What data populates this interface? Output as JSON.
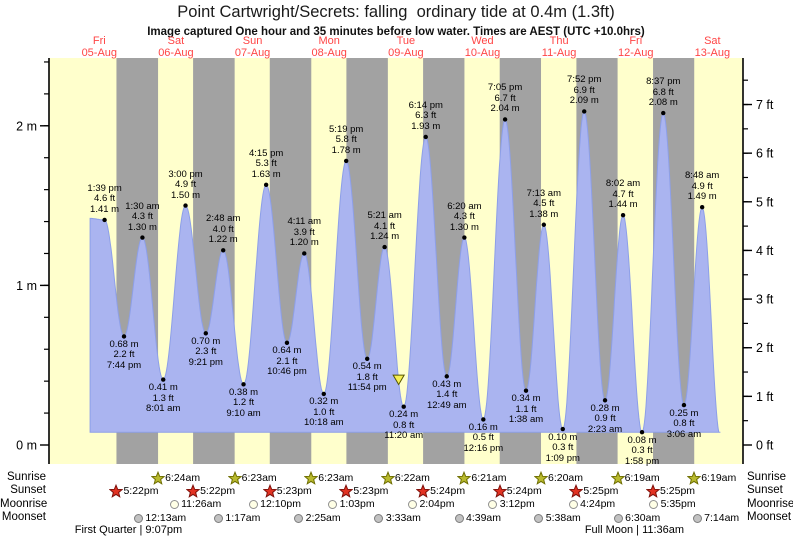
{
  "header": {
    "title": "Point Cartwright/Secrets: falling  ordinary tide at 0.4m (1.3ft)",
    "subtitle": "Image captured One hour and 35 minutes before low water. Times are AEST (UTC +10.0hrs)"
  },
  "colors": {
    "day_band": "#ffffcc",
    "night_band": "#a2a2a2",
    "tide_fill": "#aab4f0",
    "tide_stroke": "#8d9fe8",
    "date_label": "#ff4545",
    "axis": "#000000",
    "dot": "#000000",
    "marker_triangle": "#f7ef53",
    "marker_triangle_border": "#555500"
  },
  "days": [
    {
      "name": "Fri",
      "date": "05-Aug"
    },
    {
      "name": "Sat",
      "date": "06-Aug"
    },
    {
      "name": "Sun",
      "date": "07-Aug"
    },
    {
      "name": "Mon",
      "date": "08-Aug"
    },
    {
      "name": "Tue",
      "date": "09-Aug"
    },
    {
      "name": "Wed",
      "date": "10-Aug"
    },
    {
      "name": "Thu",
      "date": "11-Aug"
    },
    {
      "name": "Fri",
      "date": "12-Aug"
    },
    {
      "name": "Sat",
      "date": "13-Aug"
    }
  ],
  "axes": {
    "left": {
      "unit": "m",
      "major": [
        {
          "v": 0,
          "label": "0 m"
        },
        {
          "v": 1,
          "label": "1 m"
        },
        {
          "v": 2,
          "label": "2 m"
        }
      ]
    },
    "right": {
      "unit": "ft",
      "major": [
        {
          "ft": 0,
          "label": "0 ft"
        },
        {
          "ft": 1,
          "label": "1 ft"
        },
        {
          "ft": 2,
          "label": "2 ft"
        },
        {
          "ft": 3,
          "label": "3 ft"
        },
        {
          "ft": 4,
          "label": "4 ft"
        },
        {
          "ft": 5,
          "label": "5 ft"
        },
        {
          "ft": 6,
          "label": "6 ft"
        },
        {
          "ft": 7,
          "label": "7 ft"
        }
      ]
    }
  },
  "chart_data": {
    "type": "area",
    "title": "Point Cartwright/Secrets: falling  ordinary tide at 0.4m (1.3ft)",
    "x_range_days": "Fri 05-Aug to Sat 13-Aug, hours t measured from Fri 00:00",
    "ylim_m": [
      -0.12,
      2.42
    ],
    "baseline_m": 0.08,
    "curve_start": {
      "t": 9.1,
      "h": 1.42
    },
    "curve_end": {
      "t": 206.5,
      "h": 0.05
    },
    "current_marker": {
      "symbol": "yellow-triangle",
      "t": 105.75,
      "h": 0.41
    },
    "tides": [
      {
        "type": "high",
        "time": "1:39 pm",
        "ft": "4.6 ft",
        "m": "1.41 m",
        "t": 13.65,
        "h": 1.41
      },
      {
        "type": "low",
        "time": "7:44 pm",
        "ft": "2.2 ft",
        "m": "0.68 m",
        "t": 19.733,
        "h": 0.68
      },
      {
        "type": "high",
        "time": "1:30 am",
        "ft": "4.3 ft",
        "m": "1.30 m",
        "t": 25.5,
        "h": 1.3
      },
      {
        "type": "low",
        "time": "8:01 am",
        "ft": "1.3 ft",
        "m": "0.41 m",
        "t": 32.017,
        "h": 0.41
      },
      {
        "type": "high",
        "time": "3:00 pm",
        "ft": "4.9 ft",
        "m": "1.50 m",
        "t": 39.0,
        "h": 1.5
      },
      {
        "type": "low",
        "time": "9:21 pm",
        "ft": "2.3 ft",
        "m": "0.70 m",
        "t": 45.35,
        "h": 0.7
      },
      {
        "type": "high",
        "time": "2:48 am",
        "ft": "4.0 ft",
        "m": "1.22 m",
        "t": 50.8,
        "h": 1.22
      },
      {
        "type": "low",
        "time": "9:10 am",
        "ft": "1.2 ft",
        "m": "0.38 m",
        "t": 57.167,
        "h": 0.38
      },
      {
        "type": "high",
        "time": "4:15 pm",
        "ft": "5.3 ft",
        "m": "1.63 m",
        "t": 64.25,
        "h": 1.63
      },
      {
        "type": "low",
        "time": "10:46 pm",
        "ft": "2.1 ft",
        "m": "0.64 m",
        "t": 70.767,
        "h": 0.64
      },
      {
        "type": "high",
        "time": "4:11 am",
        "ft": "3.9 ft",
        "m": "1.20 m",
        "t": 76.183,
        "h": 1.2
      },
      {
        "type": "low",
        "time": "10:18 am",
        "ft": "1.0 ft",
        "m": "0.32 m",
        "t": 82.3,
        "h": 0.32
      },
      {
        "type": "high",
        "time": "5:19 pm",
        "ft": "5.8 ft",
        "m": "1.78 m",
        "t": 89.317,
        "h": 1.78
      },
      {
        "type": "low",
        "time": "11:54 pm",
        "ft": "1.8 ft",
        "m": "0.54 m",
        "t": 95.9,
        "h": 0.54
      },
      {
        "type": "high",
        "time": "5:21 am",
        "ft": "4.1 ft",
        "m": "1.24 m",
        "t": 101.35,
        "h": 1.24
      },
      {
        "type": "low",
        "time": "11:20 am",
        "ft": "0.8 ft",
        "m": "0.24 m",
        "t": 107.333,
        "h": 0.24
      },
      {
        "type": "high",
        "time": "6:14 pm",
        "ft": "6.3 ft",
        "m": "1.93 m",
        "t": 114.233,
        "h": 1.93
      },
      {
        "type": "low",
        "time": "12:49 am",
        "ft": "1.4 ft",
        "m": "0.43 m",
        "t": 120.817,
        "h": 0.43
      },
      {
        "type": "high",
        "time": "6:20 am",
        "ft": "4.3 ft",
        "m": "1.30 m",
        "t": 126.333,
        "h": 1.3
      },
      {
        "type": "low",
        "time": "12:16 pm",
        "ft": "0.5 ft",
        "m": "0.16 m",
        "t": 132.267,
        "h": 0.16
      },
      {
        "type": "high",
        "time": "7:05 pm",
        "ft": "6.7 ft",
        "m": "2.04 m",
        "t": 139.083,
        "h": 2.04
      },
      {
        "type": "low",
        "time": "1:38 am",
        "ft": "1.1 ft",
        "m": "0.34 m",
        "t": 145.633,
        "h": 0.34
      },
      {
        "type": "high",
        "time": "7:13 am",
        "ft": "4.5 ft",
        "m": "1.38 m",
        "t": 151.217,
        "h": 1.38
      },
      {
        "type": "low",
        "time": "1:09 pm",
        "ft": "0.3 ft",
        "m": "0.10 m",
        "t": 157.15,
        "h": 0.1
      },
      {
        "type": "high",
        "time": "7:52 pm",
        "ft": "6.9 ft",
        "m": "2.09 m",
        "t": 163.867,
        "h": 2.09
      },
      {
        "type": "low",
        "time": "2:23 am",
        "ft": "0.9 ft",
        "m": "0.28 m",
        "t": 170.383,
        "h": 0.28
      },
      {
        "type": "high",
        "time": "8:02 am",
        "ft": "4.7 ft",
        "m": "1.44 m",
        "t": 176.033,
        "h": 1.44
      },
      {
        "type": "low",
        "time": "1:58 pm",
        "ft": "0.3 ft",
        "m": "0.08 m",
        "t": 181.967,
        "h": 0.08
      },
      {
        "type": "high",
        "time": "8:37 pm",
        "ft": "6.8 ft",
        "m": "2.08 m",
        "t": 188.617,
        "h": 2.08
      },
      {
        "type": "low",
        "time": "3:06 am",
        "ft": "0.8 ft",
        "m": "0.25 m",
        "t": 195.1,
        "h": 0.25
      },
      {
        "type": "high",
        "time": "8:48 am",
        "ft": "4.9 ft",
        "m": "1.49 m",
        "t": 200.8,
        "h": 1.49
      }
    ]
  },
  "sun_moon": {
    "rows": [
      {
        "id": "sunrise",
        "label": "Sunrise",
        "marker": "star",
        "fill": "#b9ba2e",
        "border": "#6e6e00",
        "events": [
          {
            "time": "6:24am",
            "t": 30.4
          },
          {
            "time": "6:23am",
            "t": 54.383
          },
          {
            "time": "6:23am",
            "t": 78.383
          },
          {
            "time": "6:22am",
            "t": 102.367
          },
          {
            "time": "6:21am",
            "t": 126.35
          },
          {
            "time": "6:20am",
            "t": 150.333
          },
          {
            "time": "6:19am",
            "t": 174.317
          },
          {
            "time": "6:19am",
            "t": 198.317
          }
        ]
      },
      {
        "id": "sunset",
        "label": "Sunset",
        "marker": "star",
        "fill": "#e23222",
        "border": "#7d100a",
        "events": [
          {
            "time": "5:22pm",
            "t": 17.367
          },
          {
            "time": "5:22pm",
            "t": 41.367
          },
          {
            "time": "5:23pm",
            "t": 65.383
          },
          {
            "time": "5:23pm",
            "t": 89.383
          },
          {
            "time": "5:24pm",
            "t": 113.4
          },
          {
            "time": "5:24pm",
            "t": 137.4
          },
          {
            "time": "5:25pm",
            "t": 161.417
          },
          {
            "time": "5:25pm",
            "t": 185.417
          }
        ]
      },
      {
        "id": "moonrise",
        "label": "Moonrise",
        "marker": "circle",
        "fill": "#ffffe6",
        "border": "#909090",
        "events": [
          {
            "time": "11:26am",
            "t": 35.433
          },
          {
            "time": "12:10pm",
            "t": 60.167
          },
          {
            "time": "1:03pm",
            "t": 85.05
          },
          {
            "time": "2:04pm",
            "t": 110.067
          },
          {
            "time": "3:12pm",
            "t": 135.2
          },
          {
            "time": "4:24pm",
            "t": 160.4
          },
          {
            "time": "5:35pm",
            "t": 185.583
          }
        ]
      },
      {
        "id": "moonset",
        "label": "Moonset",
        "marker": "circle",
        "fill": "#c2c2c2",
        "border": "#7d7d7d",
        "events": [
          {
            "time": "12:13am",
            "t": 24.217
          },
          {
            "time": "1:17am",
            "t": 49.283
          },
          {
            "time": "2:25am",
            "t": 74.417
          },
          {
            "time": "3:33am",
            "t": 99.55
          },
          {
            "time": "4:39am",
            "t": 124.65
          },
          {
            "time": "5:38am",
            "t": 149.633
          },
          {
            "time": "6:30am",
            "t": 174.5
          },
          {
            "time": "7:14am",
            "t": 199.233
          }
        ]
      }
    ],
    "phases": [
      {
        "text": "First Quarter | 9:07pm",
        "t": 21.117
      },
      {
        "text": "Full Moon | 11:36am",
        "t": 179.6
      }
    ]
  }
}
